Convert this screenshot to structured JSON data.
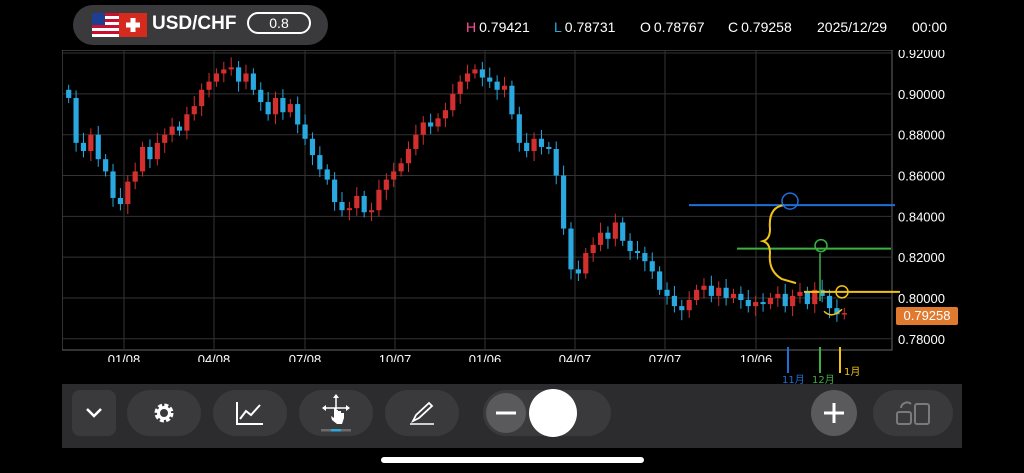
{
  "header": {
    "symbol": "USD/CHF",
    "lot": "0.8",
    "high_key": "H",
    "high": "0.79421",
    "low_key": "L",
    "low": "0.78731",
    "open_key": "O",
    "open": "0.78767",
    "close_key": "C",
    "close": "0.79258",
    "date": "2025/12/29",
    "time": "00:00"
  },
  "colors": {
    "bull": "#d32f2f",
    "bear": "#29a9e0",
    "high_key": "#ff4fa0",
    "low_key": "#29a9e0",
    "price_tag": "#e07a2f"
  },
  "chart_data": {
    "type": "candlestick",
    "y_ticks": [
      "0.92000",
      "0.90000",
      "0.88000",
      "0.86000",
      "0.84000",
      "0.82000",
      "0.80000",
      "0.78000"
    ],
    "y_tick_values": [
      0.92,
      0.9,
      0.88,
      0.86,
      0.84,
      0.82,
      0.8,
      0.78
    ],
    "ylim": [
      0.7745,
      0.9215
    ],
    "x_ticks": [
      "01/08",
      "04/08",
      "07/08",
      "10/07",
      "01/06",
      "04/07",
      "07/07",
      "10/06"
    ],
    "current_price": "0.79258",
    "closes": [
      0.898,
      0.876,
      0.872,
      0.88,
      0.868,
      0.862,
      0.849,
      0.846,
      0.857,
      0.862,
      0.874,
      0.868,
      0.876,
      0.88,
      0.884,
      0.882,
      0.89,
      0.894,
      0.902,
      0.906,
      0.91,
      0.912,
      0.913,
      0.906,
      0.91,
      0.902,
      0.896,
      0.89,
      0.898,
      0.891,
      0.895,
      0.885,
      0.878,
      0.87,
      0.863,
      0.858,
      0.847,
      0.843,
      0.844,
      0.85,
      0.842,
      0.843,
      0.853,
      0.858,
      0.862,
      0.866,
      0.873,
      0.88,
      0.886,
      0.884,
      0.888,
      0.892,
      0.9,
      0.906,
      0.91,
      0.912,
      0.908,
      0.906,
      0.902,
      0.904,
      0.89,
      0.876,
      0.872,
      0.878,
      0.874,
      0.873,
      0.86,
      0.834,
      0.814,
      0.812,
      0.822,
      0.826,
      0.832,
      0.829,
      0.837,
      0.828,
      0.823,
      0.822,
      0.818,
      0.813,
      0.804,
      0.801,
      0.796,
      0.794,
      0.799,
      0.804,
      0.806,
      0.801,
      0.805,
      0.8,
      0.802,
      0.799,
      0.796,
      0.798,
      0.797,
      0.8,
      0.802,
      0.796,
      0.801,
      0.803,
      0.797,
      0.804,
      0.801,
      0.795,
      0.792,
      0.7926
    ],
    "annotations": {
      "lines": [
        {
          "price": 0.8455,
          "color": "#1e6fd9"
        },
        {
          "price": 0.8242,
          "color": "#3cb043"
        },
        {
          "price": 0.803,
          "color": "#f2c316"
        }
      ],
      "markers": [
        {
          "label": "11月",
          "color": "#1e6fd9"
        },
        {
          "label": "12月",
          "color": "#3cb043"
        },
        {
          "label": "1月",
          "color": "#f2c316"
        }
      ]
    }
  },
  "toolbar": {
    "buttons": [
      "collapse",
      "settings",
      "chart-type",
      "crosshair",
      "drawing",
      "zoom",
      "add",
      "layout"
    ]
  }
}
